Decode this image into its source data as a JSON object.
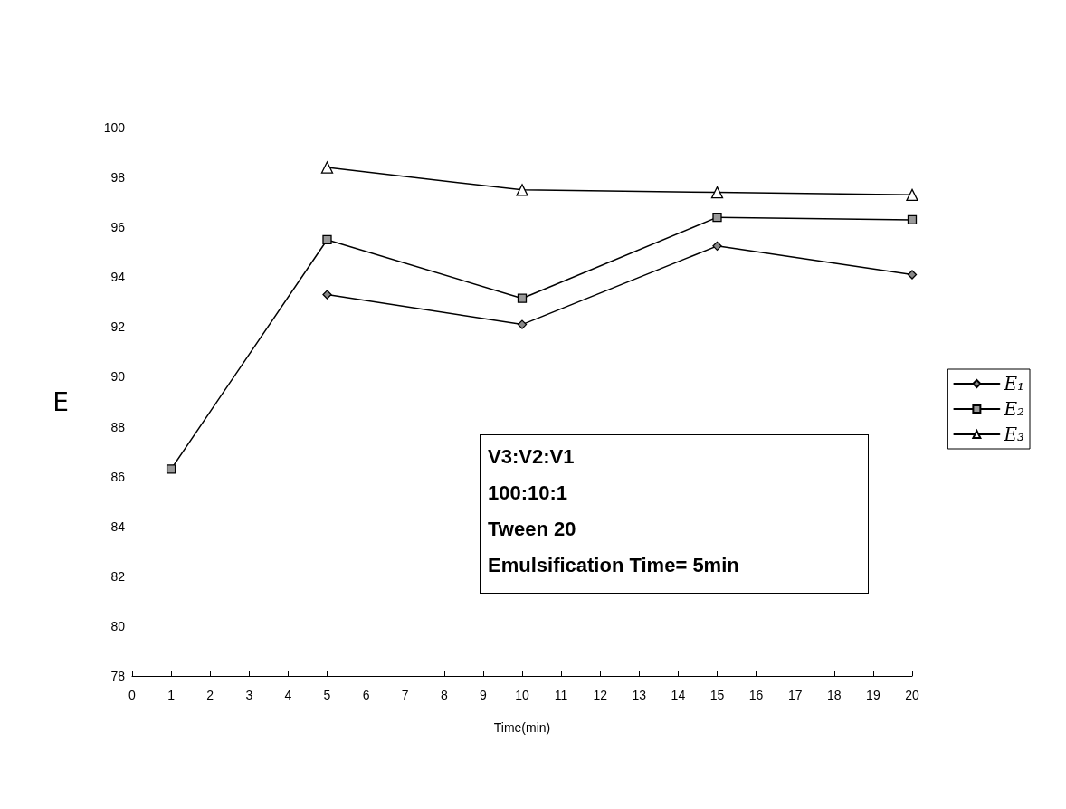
{
  "chart_data": {
    "type": "line",
    "xlabel": "Time(min)",
    "ylabel": "E",
    "x": [
      1,
      5,
      10,
      15,
      20
    ],
    "series": [
      {
        "name": "E₁",
        "color": "#000000",
        "marker": "diamond",
        "values": [
          null,
          93.3,
          92.1,
          95.25,
          94.1
        ]
      },
      {
        "name": "E₂",
        "color": "#000000",
        "marker": "square",
        "values": [
          86.3,
          95.5,
          93.15,
          96.4,
          96.3
        ]
      },
      {
        "name": "E₃",
        "color": "#000000",
        "marker": "triangle",
        "values": [
          null,
          98.4,
          97.5,
          97.4,
          97.3
        ]
      }
    ],
    "xlim": [
      0,
      20
    ],
    "xticks": [
      0,
      1,
      2,
      3,
      4,
      5,
      6,
      7,
      8,
      9,
      10,
      11,
      12,
      13,
      14,
      15,
      16,
      17,
      18,
      19,
      20
    ],
    "ylim": [
      78,
      100
    ],
    "yticks": [
      78,
      80,
      82,
      84,
      86,
      88,
      90,
      92,
      94,
      96,
      98,
      100
    ],
    "grid": false,
    "legend": "right",
    "line_style": "solid",
    "annotations": [
      "V3:V2:V1",
      "100:10:1",
      "Tween 20",
      "Emulsification Time= 5min"
    ]
  }
}
